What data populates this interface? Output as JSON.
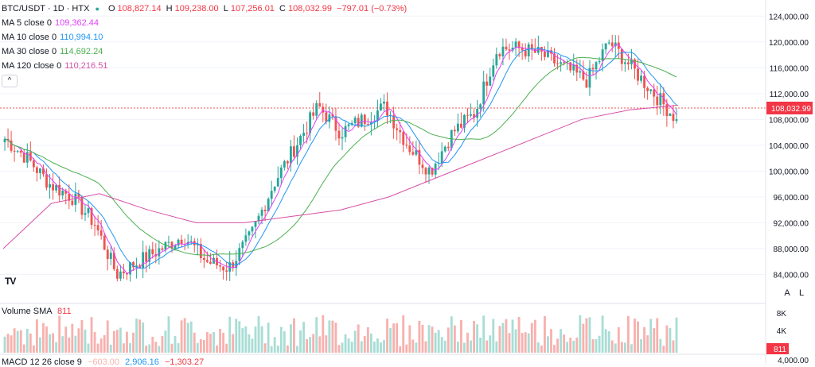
{
  "header": {
    "symbol": "BTC/USDT · 1D · HTX",
    "open_label": "O",
    "open": "108,827.14",
    "high_label": "H",
    "high": "109,238.00",
    "low_label": "L",
    "low": "107,256.01",
    "close_label": "C",
    "close": "108,032.99",
    "change": "−797.01 (−0.73%)"
  },
  "indicators": [
    {
      "label": "MA 5 close 0",
      "value": "109,362.44",
      "color": "#e040fb"
    },
    {
      "label": "MA 10 close 0",
      "value": "110,994.10",
      "color": "#2196f3"
    },
    {
      "label": "MA 30 close 0",
      "value": "114,692.24",
      "color": "#4caf50"
    },
    {
      "label": "MA 120 close 0",
      "value": "110,216.51",
      "color": "#d64fa6"
    }
  ],
  "collapse_icon": "^",
  "volume": {
    "label": "Volume SMA",
    "value": "811",
    "color": "#f23645"
  },
  "macd": {
    "label": "MACD 12 26 close 9",
    "value1": "−603.00",
    "value2": "2,906.16",
    "value3": "−1,303.27"
  },
  "price_axis_labels": [
    "124,000.00",
    "120,000.00",
    "116,000.00",
    "112,000.00",
    "108,000.00",
    "104,000.00",
    "100,000.00",
    "96,000.00",
    "92,000.00",
    "88,000.00",
    "84,000.00"
  ],
  "current_price_label": "108,032.99",
  "volume_axis_labels": [
    "8K",
    "4K"
  ],
  "volume_tag": "811",
  "macd_axis_label": "4,000.00",
  "axis_buttons": {
    "auto": "A",
    "log": "L"
  },
  "logo_text": "TV",
  "colors": {
    "up": "#26a69a",
    "down": "#ef5350",
    "vol_up": "#a8ddd5",
    "vol_down": "#f7b1ae"
  },
  "chart_data": {
    "type": "candlestick",
    "ylim": [
      80000,
      126000
    ],
    "ohlc_closes_approx": [
      105000,
      102000,
      98000,
      96000,
      92000,
      84000,
      86000,
      88000,
      90000,
      86000,
      85000,
      90000,
      98000,
      104000,
      110000,
      106000,
      108000,
      110000,
      104000,
      100000,
      106000,
      109000,
      119000,
      119000,
      118000,
      116000,
      114000,
      120000,
      116000,
      112000,
      108033
    ],
    "ma120_approx": [
      88000,
      95000,
      96500,
      94000,
      92000,
      92000,
      93000,
      94000,
      96000,
      99000,
      102000,
      105000,
      108000,
      109500,
      110200
    ]
  }
}
